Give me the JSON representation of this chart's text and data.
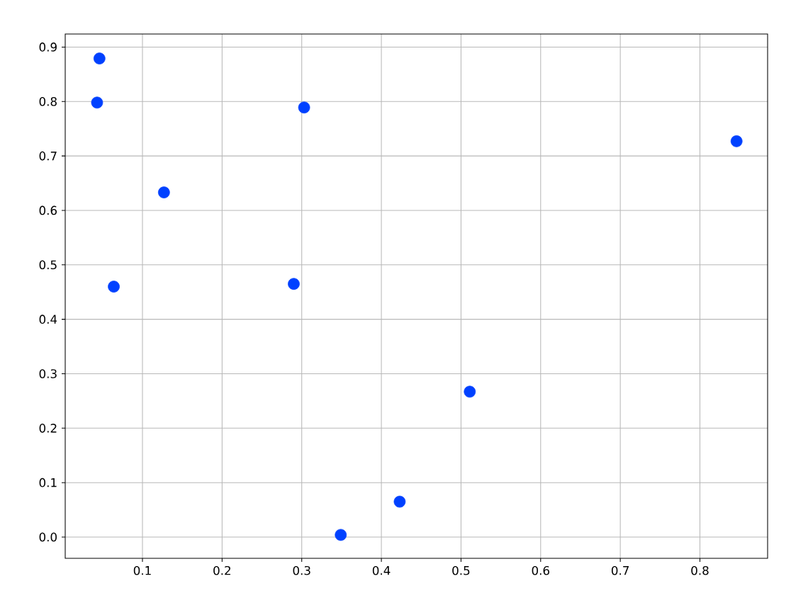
{
  "chart_data": {
    "type": "scatter",
    "x": [
      0.046,
      0.043,
      0.303,
      0.846,
      0.127,
      0.064,
      0.29,
      0.511,
      0.423,
      0.349
    ],
    "values": [
      0.879,
      0.798,
      0.789,
      0.727,
      0.633,
      0.46,
      0.465,
      0.267,
      0.065,
      0.004
    ],
    "color": "#0041ff",
    "xlim": [
      0.003,
      0.885
    ],
    "ylim": [
      -0.039,
      0.924
    ],
    "xticks": [
      0.1,
      0.2,
      0.3,
      0.4,
      0.5,
      0.6,
      0.7,
      0.8
    ],
    "yticks": [
      {
        "value": 0,
        "label": "0.0"
      },
      0.1,
      0.2,
      0.3,
      0.4,
      0.5,
      0.6,
      0.7,
      0.8,
      0.9
    ],
    "grid": true
  }
}
